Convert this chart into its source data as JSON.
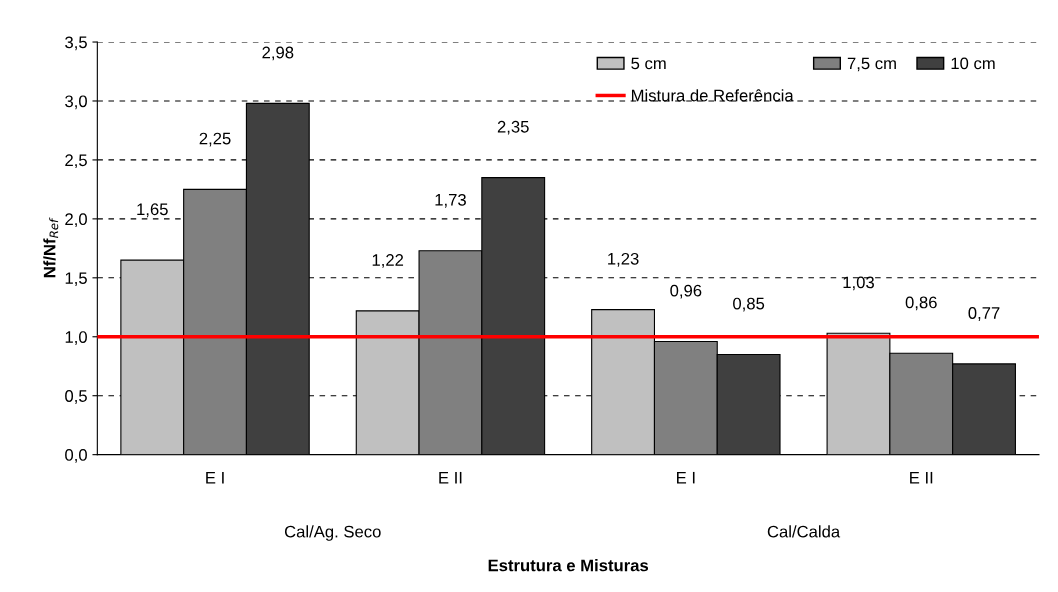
{
  "chart_data": {
    "type": "bar",
    "xlabel": "Estrutura e Misturas",
    "ylabel": "Nf/Nf$_{Ref}$",
    "categories": [
      "E I",
      "E II",
      "E I",
      "E II"
    ],
    "series": [
      {
        "name": "5 cm",
        "color": "#c0c0c0",
        "values": [
          1.65,
          1.22,
          1.23,
          1.03
        ],
        "value_labels": [
          "1,65",
          "1,22",
          "1,23",
          "1,03"
        ]
      },
      {
        "name": "7,5 cm",
        "color": "#808080",
        "values": [
          2.25,
          1.73,
          0.96,
          0.86
        ],
        "value_labels": [
          "2,25",
          "1,73",
          "0,96",
          "0,86"
        ]
      },
      {
        "name": "10 cm",
        "color": "#404040",
        "values": [
          2.98,
          2.35,
          0.85,
          0.77
        ],
        "value_labels": [
          "2,98",
          "2,35",
          "0,85",
          "0,77"
        ]
      }
    ],
    "ylim": [
      0,
      3.5
    ],
    "yticks": [
      {
        "value": 0,
        "label": "0,0"
      },
      {
        "value": 0.5,
        "label": "0,5"
      },
      {
        "value": 1,
        "label": "1,0"
      },
      {
        "value": 1.5,
        "label": "1,5"
      },
      {
        "value": 2,
        "label": "2,0"
      },
      {
        "value": 2.5,
        "label": "2,5"
      },
      {
        "value": 3,
        "label": "3,0"
      },
      {
        "value": 3.5,
        "label": "3,5"
      }
    ],
    "ref_lines": [
      {
        "axis": "y",
        "value": 1,
        "label": "Mistura de Referência",
        "color": "#ff0000",
        "line_style": "solid"
      }
    ],
    "annotations": [
      "Cal/Ag. Seco",
      "Cal/Calda"
    ],
    "grid": "y",
    "legend": "top right"
  }
}
